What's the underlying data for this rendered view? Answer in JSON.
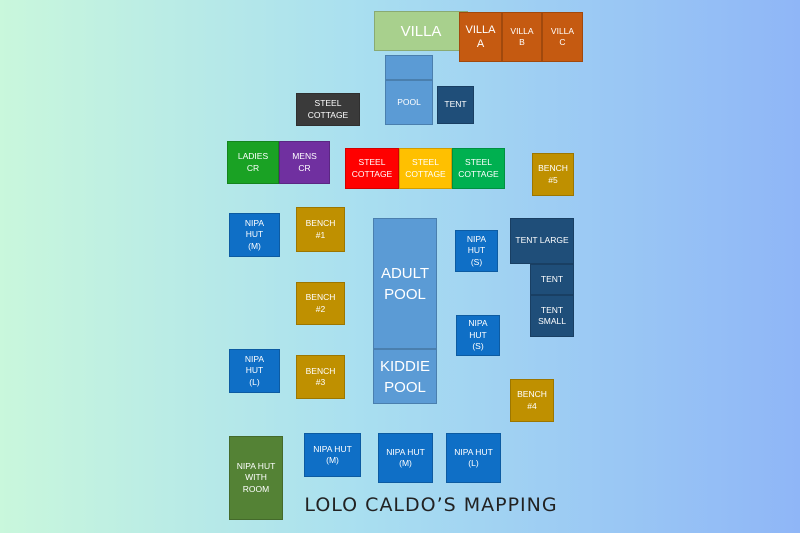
{
  "title": "LOLO CALDO’S MAPPING",
  "blocks": {
    "villa": "VILLA",
    "villa_a": "VILLA\nA",
    "villa_b": "VILLA\nB",
    "villa_c": "VILLA\nC",
    "pool": "POOL",
    "tent_top": "TENT",
    "steel_cottage_top": "STEEL\nCOTTAGE",
    "ladies_cr": "LADIES\nCR",
    "mens_cr": "MENS\nCR",
    "steel_cottage_red": "STEEL\nCOTTAGE",
    "steel_cottage_yellow": "STEEL\nCOTTAGE",
    "steel_cottage_green": "STEEL\nCOTTAGE",
    "bench_5": "BENCH\n#5",
    "nipa_hut_m_left": "NIPA\nHUT\n(M)",
    "bench_1": "BENCH\n#1",
    "adult_pool": "ADULT\nPOOL",
    "kiddie_pool": "KIDDIE\nPOOL",
    "nipa_hut_s_upper": "NIPA\nHUT\n(S)",
    "tent_large": "TENT LARGE",
    "tent_mid": "TENT",
    "tent_small": "TENT\nSMALL",
    "bench_2": "BENCH\n#2",
    "nipa_hut_s_lower": "NIPA\nHUT\n(S)",
    "nipa_hut_l_left": "NIPA\nHUT\n(L)",
    "bench_3": "BENCH\n#3",
    "bench_4": "BENCH\n#4",
    "nipa_hut_with_room": "NIPA HUT\nWITH\nROOM",
    "nipa_hut_m_bottom1": "NIPA HUT\n(M)",
    "nipa_hut_m_bottom2": "NIPA HUT\n(M)",
    "nipa_hut_l_bottom": "NIPA HUT\n(L)"
  }
}
